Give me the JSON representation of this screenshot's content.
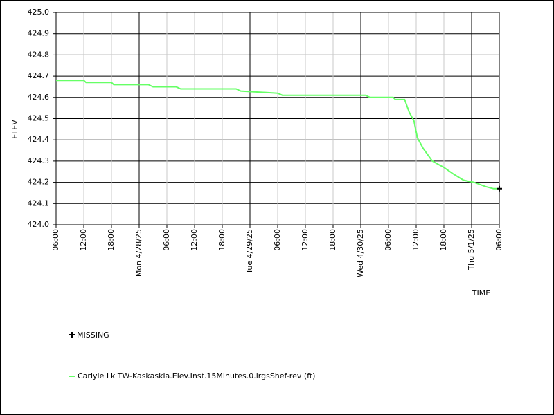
{
  "chart_data": {
    "type": "line",
    "y_label": "ELEV",
    "x_label": "TIME",
    "xlim": [
      "2025-04-27T06:00",
      "2025-05-01T06:00"
    ],
    "xticks": [
      {
        "value": "2025-04-27T06:00",
        "label": "06:00"
      },
      {
        "value": "2025-04-27T12:00",
        "label": "12:00"
      },
      {
        "value": "2025-04-27T18:00",
        "label": "18:00"
      },
      {
        "value": "2025-04-28T00:00",
        "label": "Mon 4/28/25"
      },
      {
        "value": "2025-04-28T06:00",
        "label": "06:00"
      },
      {
        "value": "2025-04-28T12:00",
        "label": "12:00"
      },
      {
        "value": "2025-04-28T18:00",
        "label": "18:00"
      },
      {
        "value": "2025-04-29T00:00",
        "label": "Tue 4/29/25"
      },
      {
        "value": "2025-04-29T06:00",
        "label": "06:00"
      },
      {
        "value": "2025-04-29T12:00",
        "label": "12:00"
      },
      {
        "value": "2025-04-29T18:00",
        "label": "18:00"
      },
      {
        "value": "2025-04-30T00:00",
        "label": "Wed 4/30/25"
      },
      {
        "value": "2025-04-30T06:00",
        "label": "06:00"
      },
      {
        "value": "2025-04-30T12:00",
        "label": "12:00"
      },
      {
        "value": "2025-04-30T18:00",
        "label": "18:00"
      },
      {
        "value": "2025-05-01T00:00",
        "label": "Thu 5/1/25"
      },
      {
        "value": "2025-05-01T06:00",
        "label": "06:00"
      }
    ],
    "ylim": [
      424.0,
      425.0
    ],
    "yticks": [
      {
        "value": 424.0,
        "label": "424.0"
      },
      424.1,
      424.2,
      424.3,
      424.4,
      424.5,
      424.6,
      424.7,
      424.8,
      424.9,
      {
        "value": 425.0,
        "label": "425.0"
      }
    ],
    "grid": true,
    "x": [
      "2025-04-27T06:00",
      "2025-04-27T12:00",
      "2025-04-27T12:30",
      "2025-04-27T18:00",
      "2025-04-27T18:30",
      "2025-04-28T02:00",
      "2025-04-28T03:00",
      "2025-04-28T08:00",
      "2025-04-28T09:00",
      "2025-04-28T21:00",
      "2025-04-28T22:00",
      "2025-04-29T06:00",
      "2025-04-29T07:00",
      "2025-04-30T01:00",
      "2025-04-30T02:00",
      "2025-04-30T07:00",
      "2025-04-30T07:30",
      "2025-04-30T09:30",
      "2025-04-30T10:30",
      "2025-04-30T11:30",
      "2025-04-30T12:15",
      "2025-04-30T13:30",
      "2025-04-30T15:30",
      "2025-04-30T18:00",
      "2025-04-30T20:00",
      "2025-04-30T22:15",
      "2025-05-01T00:30",
      "2025-05-01T03:00",
      "2025-05-01T04:45",
      "2025-05-01T06:00"
    ],
    "series": [
      {
        "name": "Carlyle Lk TW-Kaskaskia.Elev.Inst.15Minutes.0.lrgsShef-rev (ft)",
        "color": "#66ff66",
        "values": [
          424.68,
          424.68,
          424.67,
          424.67,
          424.66,
          424.66,
          424.65,
          424.65,
          424.64,
          424.64,
          424.63,
          424.62,
          424.61,
          424.61,
          424.6,
          424.6,
          424.59,
          424.59,
          424.53,
          424.49,
          424.41,
          424.36,
          424.3,
          424.27,
          424.24,
          424.21,
          424.2,
          424.18,
          424.17,
          424.17
        ]
      }
    ],
    "missing": {
      "name": "MISSING",
      "color": "#000000",
      "x": [
        "2025-05-01T06:00"
      ],
      "values": [
        424.17
      ]
    }
  }
}
